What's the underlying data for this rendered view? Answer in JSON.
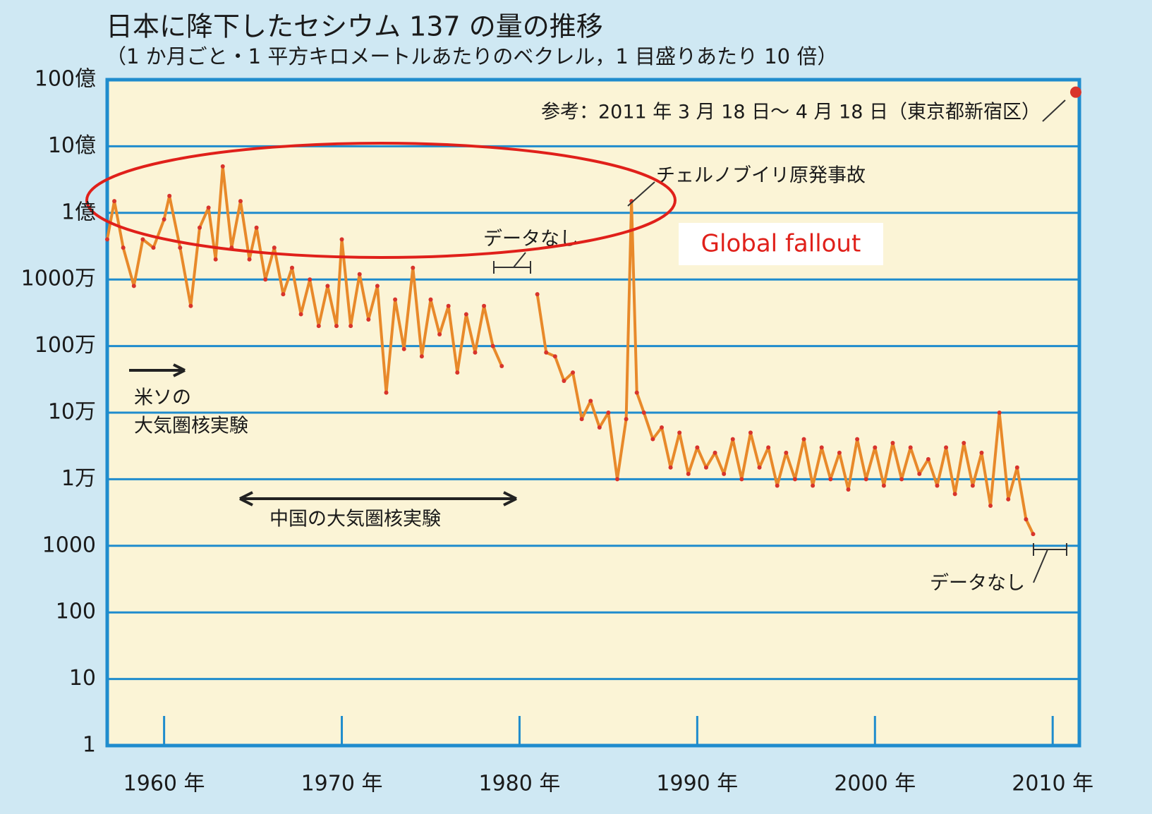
{
  "chart_data": {
    "type": "line",
    "title": "日本に降下したセシウム 137 の量の推移",
    "subtitle": "（1 か月ごと・1 平方キロメートルあたりのベクレル，1 目盛りあたり 10 倍）",
    "log_scale": true,
    "grid": true,
    "xlim": [
      1956.8,
      2011.5
    ],
    "xticks": [
      {
        "value": 1960,
        "label": "1960 年"
      },
      {
        "value": 1970,
        "label": "1970 年"
      },
      {
        "value": 1980,
        "label": "1980 年"
      },
      {
        "value": 1990,
        "label": "1990 年"
      },
      {
        "value": 2000,
        "label": "2000 年"
      },
      {
        "value": 2010,
        "label": "2010 年"
      }
    ],
    "ylim": [
      1,
      10000000000
    ],
    "yticks": [
      1,
      10,
      100,
      1000,
      {
        "value": 10000,
        "label": "1万"
      },
      {
        "value": 100000,
        "label": "10万"
      },
      {
        "value": 1000000,
        "label": "100万"
      },
      {
        "value": 10000000,
        "label": "1000万"
      },
      {
        "value": 100000000,
        "label": "1億"
      },
      {
        "value": 1000000000,
        "label": "10億"
      },
      {
        "value": 10000000000,
        "label": "100億"
      }
    ],
    "series": [
      {
        "color": "#e8892a",
        "marker_color": "#d8342c",
        "x": [
          1956.8,
          1957.2,
          1957.7,
          1958.3,
          1958.8,
          1959.4,
          1960.0,
          1960.3,
          1960.9,
          1961.5,
          1962.0,
          1962.5,
          1962.9,
          1963.3,
          1963.8,
          1964.3,
          1964.8,
          1965.2,
          1965.7,
          1966.2,
          1966.7,
          1967.2,
          1967.7,
          1968.2,
          1968.7,
          1969.2,
          1969.7,
          1970.0,
          1970.5,
          1971.0,
          1971.5,
          1972.0,
          1972.5,
          1973.0,
          1973.5,
          1974.0,
          1974.5,
          1975.0,
          1975.5,
          1976.0,
          1976.5,
          1977.0,
          1977.5,
          1978.0,
          1978.5,
          1979.0,
          1980.0,
          1981.0,
          1981.5,
          1982.0,
          1982.5,
          1983.0,
          1983.5,
          1984.0,
          1984.5,
          1985.0,
          1985.5,
          1986.0,
          1986.3,
          1986.6,
          1987.0,
          1987.5,
          1988.0,
          1988.5,
          1989.0,
          1989.5,
          1990.0,
          1990.5,
          1991.0,
          1991.5,
          1992.0,
          1992.5,
          1993.0,
          1993.5,
          1994.0,
          1994.5,
          1995.0,
          1995.5,
          1996.0,
          1996.5,
          1997.0,
          1997.5,
          1998.0,
          1998.5,
          1999.0,
          1999.5,
          2000.0,
          2000.5,
          2001.0,
          2001.5,
          2002.0,
          2002.5,
          2003.0,
          2003.5,
          2004.0,
          2004.5,
          2005.0,
          2005.5,
          2006.0,
          2006.5,
          2007.0,
          2007.5,
          2008.0,
          2008.5,
          2008.9
        ],
        "values": [
          40000000,
          150000000,
          30000000,
          8000000,
          40000000,
          30000000,
          80000000,
          180000000,
          30000000,
          4000000,
          60000000,
          120000000,
          20000000,
          500000000,
          30000000,
          150000000,
          20000000,
          60000000,
          10000000,
          30000000,
          6000000,
          15000000,
          3000000,
          10000000,
          2000000,
          8000000,
          2000000,
          40000000,
          2000000,
          12000000,
          2500000,
          8000000,
          200000,
          5000000,
          900000,
          15000000,
          700000,
          5000000,
          1500000,
          4000000,
          400000,
          3000000,
          800000,
          4000000,
          1000000,
          500000,
          null,
          6000000,
          800000,
          700000,
          300000,
          400000,
          80000,
          150000,
          60000,
          100000,
          10000,
          80000,
          150000000,
          200000,
          100000,
          40000,
          60000,
          15000,
          50000,
          12000,
          30000,
          15000,
          25000,
          12000,
          40000,
          10000,
          50000,
          15000,
          30000,
          8000,
          25000,
          10000,
          40000,
          8000,
          30000,
          10000,
          25000,
          7000,
          40000,
          10000,
          30000,
          8000,
          35000,
          10000,
          30000,
          12000,
          20000,
          8000,
          30000,
          6000,
          35000,
          8000,
          25000,
          4000,
          100000,
          5000,
          15000,
          2500,
          1500
        ]
      }
    ],
    "reference_point": {
      "x": 2011.3,
      "value": 6500000000,
      "color": "#d8342c"
    },
    "annotations": {
      "reference": "参考：2011 年 3 月 18 日～ 4 月 18 日（東京都新宿区）",
      "chernobyl": "チェルノブイリ原発事故",
      "no_data_1": "データなし",
      "no_data_2": "データなし",
      "us_ussr_1": "米ソの",
      "us_ussr_2": "大気圏核実験",
      "china": "中国の大気圏核実験",
      "global_fallout": "Global fallout"
    }
  }
}
